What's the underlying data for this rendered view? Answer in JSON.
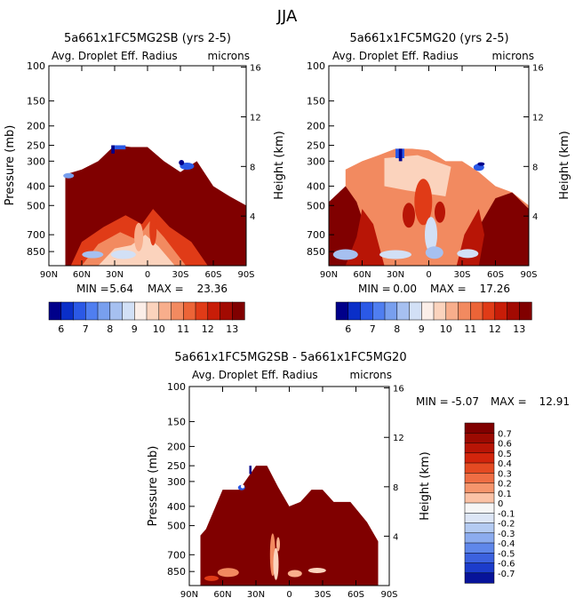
{
  "page_title": "JJA",
  "colors": {
    "dark_red": "#800000",
    "panel_border": "#000000"
  },
  "chart_data": [
    {
      "type": "heatmap",
      "title": "5a661x1FC5MG2SB (yrs 2-5)",
      "subtitle_left": "Avg. Droplet Eff. Radius",
      "subtitle_right": "microns",
      "ylabel": "Pressure (mb)",
      "y2label": "Height (km)",
      "x_ticks": [
        "90N",
        "60N",
        "30N",
        "0",
        "30S",
        "60S",
        "90S"
      ],
      "y_ticks": [
        "100",
        "150",
        "200",
        "250",
        "300",
        "400",
        "500",
        "700",
        "850"
      ],
      "y_tick_values": [
        100,
        150,
        200,
        250,
        300,
        400,
        500,
        700,
        850
      ],
      "y2_ticks": [
        "16",
        "12",
        "8",
        "4"
      ],
      "y2_tick_values": [
        16,
        12,
        8,
        4
      ],
      "ylim": [
        100,
        1000
      ],
      "xlim": [
        90,
        -90
      ],
      "min_label": "MIN =",
      "min_value": "5.64",
      "max_label": "MAX =",
      "max_value": "23.36",
      "colorbar_labels": [
        "6",
        "7",
        "8",
        "9",
        "10",
        "11",
        "12",
        "13"
      ],
      "colorbar_colors": [
        "#00008a",
        "#0a2fc8",
        "#2b59e6",
        "#4f7ef0",
        "#789fee",
        "#a6c0f0",
        "#d2e0f6",
        "#fbeee8",
        "#fbd3bd",
        "#f8ae8c",
        "#f28a60",
        "#ec6437",
        "#e03b17",
        "#c81d08",
        "#a20a02",
        "#800000"
      ],
      "contour_top_pressure_by_lat": [
        [
          90,
          null
        ],
        [
          75,
          350
        ],
        [
          60,
          330
        ],
        [
          45,
          300
        ],
        [
          30,
          250
        ],
        [
          15,
          255
        ],
        [
          0,
          255
        ],
        [
          -15,
          300
        ],
        [
          -30,
          340
        ],
        [
          -45,
          300
        ],
        [
          -60,
          400
        ],
        [
          -75,
          450
        ],
        [
          -90,
          500
        ]
      ]
    },
    {
      "type": "heatmap",
      "title": "5a661x1FC5MG20 (yrs 2-5)",
      "subtitle_left": "Avg. Droplet Eff. Radius",
      "subtitle_right": "microns",
      "ylabel": "Pressure (mb)",
      "y2label": "Height (km)",
      "x_ticks": [
        "90N",
        "60N",
        "30N",
        "0",
        "30S",
        "60S",
        "90S"
      ],
      "y_ticks": [
        "100",
        "150",
        "200",
        "250",
        "300",
        "400",
        "500",
        "700",
        "850"
      ],
      "y_tick_values": [
        100,
        150,
        200,
        250,
        300,
        400,
        500,
        700,
        850
      ],
      "y2_ticks": [
        "16",
        "12",
        "8",
        "4"
      ],
      "y2_tick_values": [
        16,
        12,
        8,
        4
      ],
      "ylim": [
        100,
        1000
      ],
      "xlim": [
        90,
        -90
      ],
      "min_label": "MIN =",
      "min_value": "0.00",
      "max_label": "MAX =",
      "max_value": "17.26",
      "colorbar_labels": [
        "6",
        "7",
        "8",
        "9",
        "10",
        "11",
        "12",
        "13"
      ],
      "colorbar_colors": [
        "#00008a",
        "#0a2fc8",
        "#2b59e6",
        "#4f7ef0",
        "#789fee",
        "#a6c0f0",
        "#d2e0f6",
        "#fbeee8",
        "#fbd3bd",
        "#f8ae8c",
        "#f28a60",
        "#ec6437",
        "#e03b17",
        "#c81d08",
        "#a20a02",
        "#800000"
      ],
      "contour_top_pressure_by_lat": [
        [
          90,
          null
        ],
        [
          75,
          330
        ],
        [
          60,
          300
        ],
        [
          45,
          280
        ],
        [
          30,
          260
        ],
        [
          15,
          260
        ],
        [
          0,
          265
        ],
        [
          -15,
          300
        ],
        [
          -30,
          300
        ],
        [
          -45,
          340
        ],
        [
          -60,
          400
        ],
        [
          -75,
          430
        ],
        [
          -90,
          500
        ]
      ]
    },
    {
      "type": "heatmap",
      "title": "5a661x1FC5MG2SB - 5a661x1FC5MG20",
      "subtitle_left": "Avg. Droplet Eff. Radius",
      "subtitle_right": "microns",
      "ylabel": "Pressure (mb)",
      "y2label": "Height (km)",
      "x_ticks": [
        "90N",
        "60N",
        "30N",
        "0",
        "30S",
        "60S",
        "90S"
      ],
      "y_ticks": [
        "100",
        "150",
        "200",
        "250",
        "300",
        "400",
        "500",
        "700",
        "850"
      ],
      "y_tick_values": [
        100,
        150,
        200,
        250,
        300,
        400,
        500,
        700,
        850
      ],
      "y2_ticks": [
        "16",
        "12",
        "8",
        "4"
      ],
      "y2_tick_values": [
        16,
        12,
        8,
        4
      ],
      "ylim": [
        100,
        1000
      ],
      "xlim": [
        90,
        -90
      ],
      "min_label": "MIN =",
      "min_value": "-5.07",
      "max_label": "MAX =",
      "max_value": "12.91",
      "colorbar_labels": [
        "0.7",
        "0.6",
        "0.5",
        "0.4",
        "0.3",
        "0.2",
        "0.1",
        "0",
        "-0.1",
        "-0.2",
        "-0.3",
        "-0.4",
        "-0.5",
        "-0.6",
        "-0.7"
      ],
      "colorbar_colors": [
        "#800000",
        "#9c0a02",
        "#b81506",
        "#d2250c",
        "#e44a22",
        "#ef6e44",
        "#f6956c",
        "#fbc2a6",
        "#f6f6f6",
        "#dde6f6",
        "#b4cbf2",
        "#8cacef",
        "#5f87ea",
        "#3c62df",
        "#1c3ccb",
        "#07139a"
      ],
      "contour_top_pressure_by_lat": [
        [
          90,
          null
        ],
        [
          80,
          560
        ],
        [
          75,
          520
        ],
        [
          60,
          330
        ],
        [
          45,
          330
        ],
        [
          30,
          250
        ],
        [
          20,
          250
        ],
        [
          10,
          320
        ],
        [
          0,
          400
        ],
        [
          -10,
          380
        ],
        [
          -20,
          330
        ],
        [
          -30,
          330
        ],
        [
          -40,
          380
        ],
        [
          -55,
          380
        ],
        [
          -70,
          480
        ],
        [
          -80,
          600
        ],
        [
          -90,
          null
        ]
      ]
    }
  ]
}
